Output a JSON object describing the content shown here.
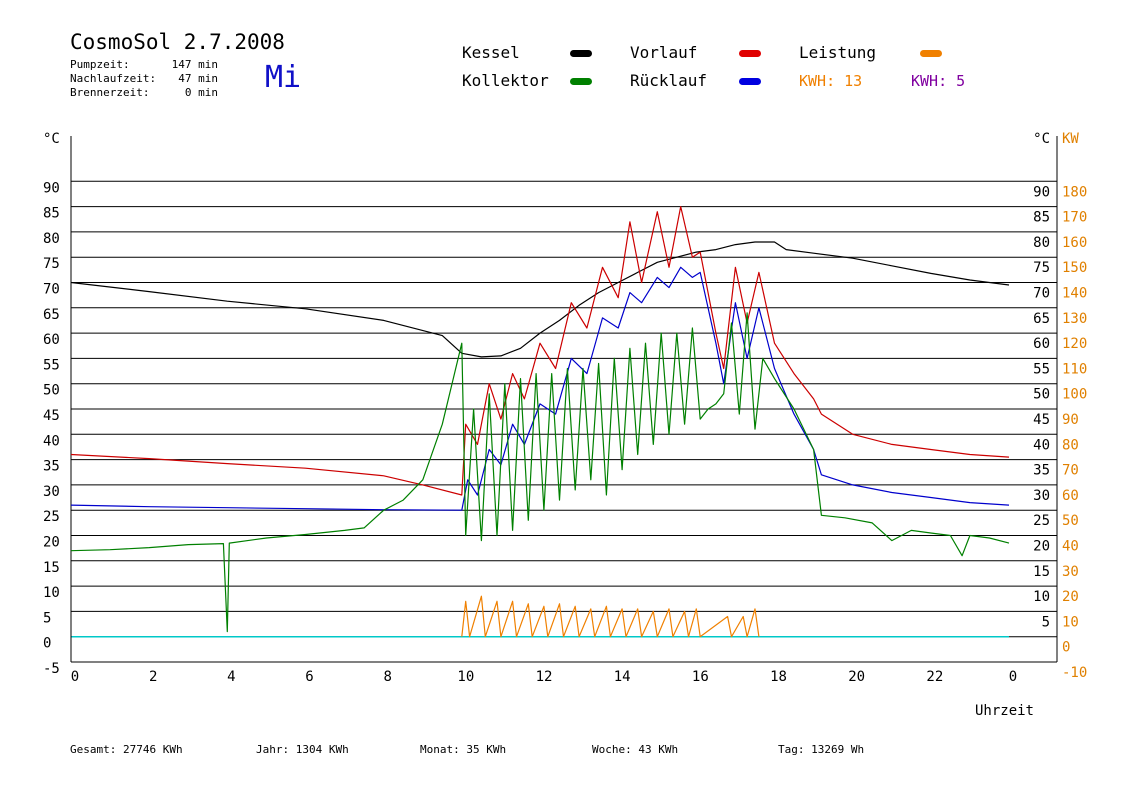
{
  "header": {
    "title": "CosmoSol 2.7.2008",
    "weekday": "Mi",
    "stats": [
      {
        "label": "Pumpzeit:",
        "value": "147 min"
      },
      {
        "label": "Nachlaufzeit:",
        "value": "47 min"
      },
      {
        "label": "Brennerzeit:",
        "value": "0 min"
      }
    ]
  },
  "legend": {
    "kessel": {
      "label": "Kessel",
      "color": "#000000"
    },
    "vorlauf": {
      "label": "Vorlauf",
      "color": "#e00000"
    },
    "leistung": {
      "label": "Leistung",
      "color": "#f08000"
    },
    "kollektor": {
      "label": "Kollektor",
      "color": "#008000"
    },
    "ruecklauf": {
      "label": "Rücklauf",
      "color": "#0000e0"
    },
    "kwh1": {
      "label": "KWH:",
      "value": "13",
      "color": "#f08000"
    },
    "kwh2": {
      "label": "KWH:",
      "value": "5",
      "color": "#8000a0"
    }
  },
  "footer": [
    {
      "label": "Gesamt:",
      "value": "27746 KWh"
    },
    {
      "label": "Jahr:",
      "value": "1304 KWh"
    },
    {
      "label": "Monat:",
      "value": "35 KWh"
    },
    {
      "label": "Woche:",
      "value": "43 KWh"
    },
    {
      "label": "Tag:",
      "value": "13269 Wh"
    }
  ],
  "chart_data": {
    "type": "line",
    "title": "CosmoSol 2.7.2008",
    "xlabel": "Uhrzeit",
    "ylabel_left": "°C",
    "ylabel_right_unit": "°C",
    "ylabel_right_power": "KW",
    "xlim": [
      0,
      24
    ],
    "ylim": [
      -5,
      95
    ],
    "x_ticks": [
      "0",
      "2",
      "4",
      "6",
      "8",
      "10",
      "12",
      "14",
      "16",
      "18",
      "20",
      "22",
      "0"
    ],
    "y_ticks_left": [
      "-5",
      "0",
      "5",
      "10",
      "15",
      "20",
      "25",
      "30",
      "35",
      "40",
      "45",
      "50",
      "55",
      "60",
      "65",
      "70",
      "75",
      "80",
      "85",
      "90"
    ],
    "y_ticks_right_temp": [
      "5",
      "10",
      "15",
      "20",
      "25",
      "30",
      "35",
      "40",
      "45",
      "50",
      "55",
      "60",
      "65",
      "70",
      "75",
      "80",
      "85",
      "90"
    ],
    "y_ticks_right_power": [
      "-10",
      "0",
      "10",
      "20",
      "30",
      "40",
      "50",
      "60",
      "70",
      "80",
      "90",
      "100",
      "110",
      "120",
      "130",
      "140",
      "150",
      "160",
      "170",
      "180"
    ],
    "grid": true,
    "series": [
      {
        "name": "Kessel",
        "color": "#000000",
        "points": [
          [
            0,
            70
          ],
          [
            2,
            68.2
          ],
          [
            4,
            66.3
          ],
          [
            6,
            64.8
          ],
          [
            8,
            62.5
          ],
          [
            9.5,
            59.5
          ],
          [
            10,
            56
          ],
          [
            10.5,
            55.3
          ],
          [
            11,
            55.5
          ],
          [
            11.5,
            57
          ],
          [
            12,
            60
          ],
          [
            12.5,
            62.5
          ],
          [
            13,
            65.5
          ],
          [
            13.5,
            68
          ],
          [
            14,
            70
          ],
          [
            14.5,
            72
          ],
          [
            15,
            74
          ],
          [
            15.5,
            75
          ],
          [
            16,
            76
          ],
          [
            16.5,
            76.5
          ],
          [
            17,
            77.5
          ],
          [
            17.5,
            78
          ],
          [
            18,
            78
          ],
          [
            18.3,
            76.5
          ],
          [
            19,
            75.8
          ],
          [
            20,
            74.8
          ],
          [
            21,
            73.3
          ],
          [
            22,
            71.8
          ],
          [
            23,
            70.5
          ],
          [
            24,
            69.5
          ]
        ]
      },
      {
        "name": "Vorlauf",
        "color": "#cc0000",
        "points": [
          [
            0,
            36
          ],
          [
            2,
            35.2
          ],
          [
            4,
            34.2
          ],
          [
            6,
            33.3
          ],
          [
            8,
            31.8
          ],
          [
            9,
            30
          ],
          [
            10,
            28
          ],
          [
            10.1,
            42
          ],
          [
            10.4,
            38
          ],
          [
            10.7,
            50
          ],
          [
            11,
            43
          ],
          [
            11.3,
            52
          ],
          [
            11.6,
            47
          ],
          [
            12,
            58
          ],
          [
            12.4,
            53
          ],
          [
            12.8,
            66
          ],
          [
            13.2,
            61
          ],
          [
            13.6,
            73
          ],
          [
            14,
            67
          ],
          [
            14.3,
            82
          ],
          [
            14.6,
            70
          ],
          [
            15,
            84
          ],
          [
            15.3,
            73
          ],
          [
            15.6,
            85
          ],
          [
            15.9,
            75
          ],
          [
            16.1,
            76
          ],
          [
            16.5,
            60
          ],
          [
            16.7,
            53
          ],
          [
            17,
            73
          ],
          [
            17.3,
            62
          ],
          [
            17.6,
            72
          ],
          [
            18,
            58
          ],
          [
            18.5,
            52
          ],
          [
            19,
            47
          ],
          [
            19.2,
            44
          ],
          [
            20,
            40
          ],
          [
            21,
            38
          ],
          [
            22,
            37
          ],
          [
            23,
            36
          ],
          [
            24,
            35.5
          ]
        ]
      },
      {
        "name": "Rücklauf",
        "color": "#0000cc",
        "points": [
          [
            0,
            26
          ],
          [
            2,
            25.7
          ],
          [
            4,
            25.5
          ],
          [
            6,
            25.3
          ],
          [
            8,
            25.1
          ],
          [
            10,
            25
          ],
          [
            10.15,
            31
          ],
          [
            10.4,
            28
          ],
          [
            10.7,
            37
          ],
          [
            11,
            34
          ],
          [
            11.3,
            42
          ],
          [
            11.6,
            38
          ],
          [
            12,
            46
          ],
          [
            12.4,
            44
          ],
          [
            12.8,
            55
          ],
          [
            13.2,
            52
          ],
          [
            13.6,
            63
          ],
          [
            14,
            61
          ],
          [
            14.3,
            68
          ],
          [
            14.6,
            66
          ],
          [
            15,
            71
          ],
          [
            15.3,
            69
          ],
          [
            15.6,
            73
          ],
          [
            15.9,
            71
          ],
          [
            16.1,
            72
          ],
          [
            16.5,
            58
          ],
          [
            16.7,
            50
          ],
          [
            17,
            66
          ],
          [
            17.3,
            55
          ],
          [
            17.6,
            65
          ],
          [
            18,
            53
          ],
          [
            18.5,
            44
          ],
          [
            19,
            37
          ],
          [
            19.2,
            32
          ],
          [
            20,
            30
          ],
          [
            21,
            28.5
          ],
          [
            22,
            27.5
          ],
          [
            23,
            26.5
          ],
          [
            24,
            26
          ]
        ]
      },
      {
        "name": "Kollektor",
        "color": "#008000",
        "points": [
          [
            0,
            17
          ],
          [
            1,
            17.2
          ],
          [
            2,
            17.6
          ],
          [
            3,
            18.2
          ],
          [
            3.9,
            18.4
          ],
          [
            4,
            1
          ],
          [
            4.05,
            18.5
          ],
          [
            5,
            19.5
          ],
          [
            6,
            20.2
          ],
          [
            7,
            21
          ],
          [
            7.5,
            21.5
          ],
          [
            8,
            25
          ],
          [
            8.5,
            27
          ],
          [
            9,
            31
          ],
          [
            9.5,
            42
          ],
          [
            10,
            58
          ],
          [
            10.1,
            20
          ],
          [
            10.3,
            45
          ],
          [
            10.5,
            19
          ],
          [
            10.7,
            48
          ],
          [
            10.9,
            20
          ],
          [
            11.1,
            50
          ],
          [
            11.3,
            21
          ],
          [
            11.5,
            51
          ],
          [
            11.7,
            23
          ],
          [
            11.9,
            52
          ],
          [
            12.1,
            25
          ],
          [
            12.3,
            52
          ],
          [
            12.5,
            27
          ],
          [
            12.7,
            53
          ],
          [
            12.9,
            29
          ],
          [
            13.1,
            53
          ],
          [
            13.3,
            31
          ],
          [
            13.5,
            54
          ],
          [
            13.7,
            28
          ],
          [
            13.9,
            55
          ],
          [
            14.1,
            33
          ],
          [
            14.3,
            57
          ],
          [
            14.5,
            36
          ],
          [
            14.7,
            58
          ],
          [
            14.9,
            38
          ],
          [
            15.1,
            60
          ],
          [
            15.3,
            40
          ],
          [
            15.5,
            60
          ],
          [
            15.7,
            42
          ],
          [
            15.9,
            61
          ],
          [
            16.1,
            43
          ],
          [
            16.3,
            45
          ],
          [
            16.5,
            46
          ],
          [
            16.7,
            48
          ],
          [
            16.9,
            62
          ],
          [
            17.1,
            44
          ],
          [
            17.3,
            64
          ],
          [
            17.5,
            41
          ],
          [
            17.7,
            55
          ],
          [
            18,
            51
          ],
          [
            18.5,
            45
          ],
          [
            19,
            37
          ],
          [
            19.2,
            24
          ],
          [
            19.8,
            23.5
          ],
          [
            20.5,
            22.5
          ],
          [
            21,
            19
          ],
          [
            21.5,
            21
          ],
          [
            22,
            20.5
          ],
          [
            22.5,
            20
          ],
          [
            22.8,
            16
          ],
          [
            23,
            20
          ],
          [
            23.5,
            19.5
          ],
          [
            24,
            18.5
          ]
        ]
      },
      {
        "name": "Leistung",
        "color": "#f08000",
        "points": [
          [
            10,
            0
          ],
          [
            10.1,
            7
          ],
          [
            10.2,
            0
          ],
          [
            10.5,
            8
          ],
          [
            10.6,
            0
          ],
          [
            10.9,
            7
          ],
          [
            11,
            0
          ],
          [
            11.3,
            7
          ],
          [
            11.4,
            0
          ],
          [
            11.7,
            6.5
          ],
          [
            11.8,
            0
          ],
          [
            12.1,
            6
          ],
          [
            12.2,
            0
          ],
          [
            12.5,
            6.5
          ],
          [
            12.6,
            0
          ],
          [
            12.9,
            6
          ],
          [
            13,
            0
          ],
          [
            13.3,
            5.5
          ],
          [
            13.4,
            0
          ],
          [
            13.7,
            6
          ],
          [
            13.8,
            0
          ],
          [
            14.1,
            5.5
          ],
          [
            14.2,
            0
          ],
          [
            14.5,
            5.5
          ],
          [
            14.6,
            0
          ],
          [
            14.9,
            5
          ],
          [
            15,
            0
          ],
          [
            15.3,
            5.5
          ],
          [
            15.4,
            0
          ],
          [
            15.7,
            5
          ],
          [
            15.8,
            0
          ],
          [
            16,
            5.5
          ],
          [
            16.1,
            0
          ],
          [
            16.8,
            4
          ],
          [
            16.9,
            0
          ],
          [
            17.2,
            4
          ],
          [
            17.3,
            0
          ],
          [
            17.5,
            5.5
          ],
          [
            17.6,
            0
          ]
        ]
      }
    ]
  }
}
